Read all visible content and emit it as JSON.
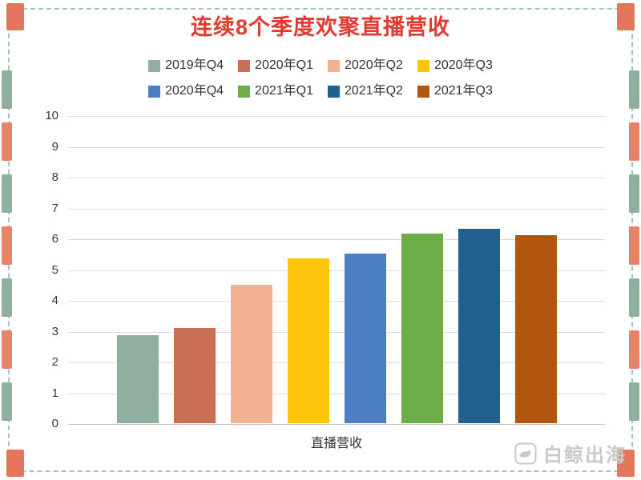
{
  "title": "连续8个季度欢聚直播营收",
  "chart_data": {
    "type": "bar",
    "title": "连续8个季度欢聚直播营收",
    "categories": [
      "直播营收"
    ],
    "series": [
      {
        "name": "2019年Q4",
        "color": "#8FAF9F",
        "values": [
          2.85
        ]
      },
      {
        "name": "2020年Q1",
        "color": "#C96F56",
        "values": [
          3.1
        ]
      },
      {
        "name": "2020年Q2",
        "color": "#F2B191",
        "values": [
          4.5
        ]
      },
      {
        "name": "2020年Q3",
        "color": "#FFC60B",
        "values": [
          5.35
        ]
      },
      {
        "name": "2020年Q4",
        "color": "#4D7EC2",
        "values": [
          5.5
        ]
      },
      {
        "name": "2021年Q1",
        "color": "#6EAE49",
        "values": [
          6.15
        ]
      },
      {
        "name": "2021年Q2",
        "color": "#20608E",
        "values": [
          6.3
        ]
      },
      {
        "name": "2021年Q3",
        "color": "#B2560F",
        "values": [
          6.1
        ]
      }
    ],
    "xlabel": "直播营收",
    "ylabel": "",
    "ylim": [
      0,
      10
    ],
    "yticks": [
      0,
      1,
      2,
      3,
      4,
      5,
      6,
      7,
      8,
      9,
      10
    ],
    "grid": true,
    "legend_position": "top",
    "legend_rows": [
      [
        "2019年Q4",
        "2020年Q1",
        "2020年Q2",
        "2020年Q3"
      ],
      [
        "2020年Q4",
        "2021年Q1",
        "2021年Q2",
        "2021年Q3"
      ]
    ]
  },
  "watermark": {
    "text": "白鲸出海",
    "icon": "whale-icon"
  },
  "colors": {
    "title": "#E23A2E",
    "frame_dash": "#A5C6BC",
    "frame_teal": "#8FAF9F",
    "frame_salmon": "#E8826A",
    "frame_corner": "#E4765B",
    "grid": "#DCDCDC",
    "axis_text": "#3A3A3A",
    "watermark": "#C9C9C9"
  }
}
